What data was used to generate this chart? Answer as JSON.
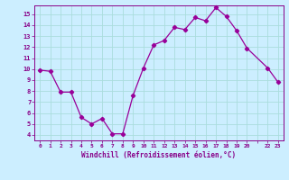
{
  "x": [
    0,
    1,
    2,
    3,
    4,
    5,
    6,
    7,
    8,
    9,
    10,
    11,
    12,
    13,
    14,
    15,
    16,
    17,
    18,
    19,
    20,
    22,
    23
  ],
  "y": [
    9.9,
    9.8,
    7.9,
    7.9,
    5.6,
    5.0,
    5.5,
    4.1,
    4.1,
    7.6,
    10.1,
    12.2,
    12.6,
    13.8,
    13.6,
    14.7,
    14.4,
    15.6,
    14.8,
    13.5,
    11.9,
    10.1,
    8.8
  ],
  "line_color": "#990099",
  "marker": "D",
  "marker_size": 2.2,
  "bg_color": "#cceeff",
  "grid_color": "#aadddd",
  "xlabel": "Windchill (Refroidissement éolien,°C)",
  "xlabel_color": "#880088",
  "tick_color": "#880088",
  "ylim": [
    3.5,
    15.8
  ],
  "xlim": [
    -0.5,
    23.5
  ],
  "yticks": [
    4,
    5,
    6,
    7,
    8,
    9,
    10,
    11,
    12,
    13,
    14,
    15
  ],
  "ytick_labels": [
    "4",
    "5",
    "6",
    "7",
    "8",
    "9",
    "10",
    "11",
    "12",
    "13",
    "14",
    "15"
  ],
  "xtick_labels": [
    "0",
    "1",
    "2",
    "3",
    "4",
    "5",
    "6",
    "7",
    "8",
    "9",
    "10",
    "11",
    "12",
    "13",
    "14",
    "15",
    "16",
    "17",
    "18",
    "19",
    "20",
    "",
    "22",
    "23"
  ]
}
